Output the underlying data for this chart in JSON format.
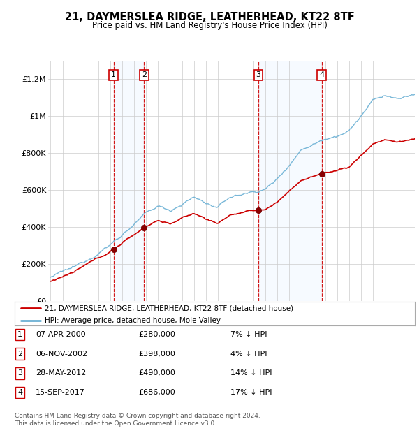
{
  "title": "21, DAYMERSLEA RIDGE, LEATHERHEAD, KT22 8TF",
  "subtitle": "Price paid vs. HM Land Registry's House Price Index (HPI)",
  "legend_line1": "21, DAYMERSLEA RIDGE, LEATHERHEAD, KT22 8TF (detached house)",
  "legend_line2": "HPI: Average price, detached house, Mole Valley",
  "footer1": "Contains HM Land Registry data © Crown copyright and database right 2024.",
  "footer2": "This data is licensed under the Open Government Licence v3.0.",
  "transactions": [
    {
      "num": 1,
      "date": "07-APR-2000",
      "price": "£280,000",
      "pct": "7% ↓ HPI",
      "year": 2000.27
    },
    {
      "num": 2,
      "date": "06-NOV-2002",
      "price": "£398,000",
      "pct": "4% ↓ HPI",
      "year": 2002.84
    },
    {
      "num": 3,
      "date": "28-MAY-2012",
      "price": "£490,000",
      "pct": "14% ↓ HPI",
      "year": 2012.41
    },
    {
      "num": 4,
      "date": "15-SEP-2017",
      "price": "£686,000",
      "pct": "17% ↓ HPI",
      "year": 2017.71
    }
  ],
  "transaction_prices": [
    280000,
    398000,
    490000,
    686000
  ],
  "hpi_color": "#6ab0d4",
  "price_color": "#cc0000",
  "marker_color": "#8b0000",
  "box_color": "#cc0000",
  "shade_color": "#ddeeff",
  "ylim": [
    0,
    1300000
  ],
  "yticks": [
    0,
    200000,
    400000,
    600000,
    800000,
    1000000,
    1200000
  ],
  "ytick_labels": [
    "£0",
    "£200K",
    "£400K",
    "£600K",
    "£800K",
    "£1M",
    "£1.2M"
  ],
  "year_start": 1994.8,
  "year_end": 2025.5
}
